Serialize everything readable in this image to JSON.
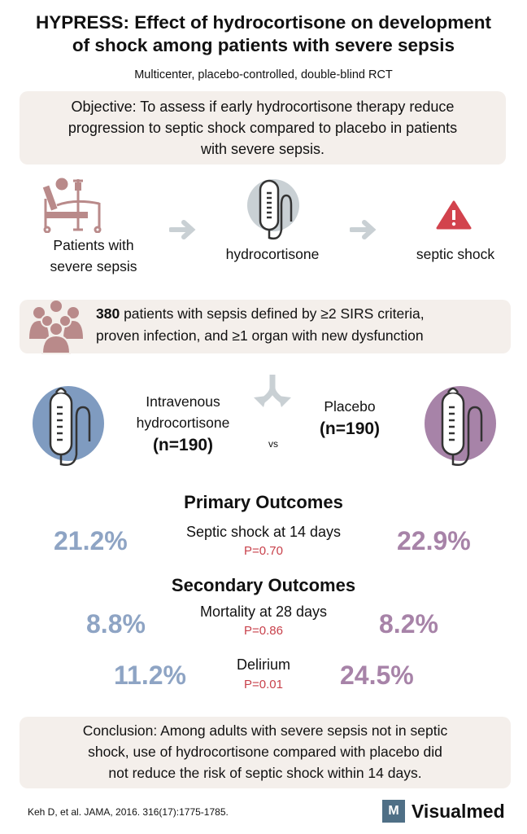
{
  "header": {
    "title_line1": "HYPRESS: Effect of hydrocortisone on development",
    "title_line2": "of shock among patients with severe sepsis",
    "subtitle": "Multicenter, placebo-controlled, double-blind RCT"
  },
  "objective": {
    "line1": "Objective: To assess if early hydrocortisone therapy reduce",
    "line2": "progression to septic shock compared to placebo in patients",
    "line3": "with severe sepsis."
  },
  "flow": {
    "step1_line1": "Patients with",
    "step1_line2": "severe sepsis",
    "step2": "hydrocortisone",
    "step3": "septic shock"
  },
  "population": {
    "count": "380",
    "line1_rest": " patients with sepsis defined by ≥2 SIRS criteria,",
    "line2": "proven infection, and ≥1 organ with new dysfunction"
  },
  "arms": {
    "left_line1": "Intravenous",
    "left_line2": "hydrocortisone",
    "left_n": "(n=190)",
    "vs": "vs",
    "right_line1": "Placebo",
    "right_n": "(n=190)"
  },
  "primary": {
    "heading": "Primary Outcomes",
    "label": "Septic shock at 14 days",
    "p": "P=0.70",
    "hydrocortisone": "21.2%",
    "placebo": "22.9%"
  },
  "secondary": {
    "heading": "Secondary Outcomes",
    "mortality": {
      "label": "Mortality at 28 days",
      "p": "P=0.86",
      "hydrocortisone": "8.8%",
      "placebo": "8.2%"
    },
    "delirium": {
      "label": "Delirium",
      "p": "P=0.01",
      "hydrocortisone": "11.2%",
      "placebo": "24.5%"
    }
  },
  "conclusion": {
    "line1": "Conclusion: Among adults with severe sepsis not in septic",
    "line2": "shock, use of hydrocortisone compared with placebo did",
    "line3": "not reduce the risk of septic shock within 14 days."
  },
  "footer": {
    "citation": "Keh D, et al. JAMA,  2016. 316(17):1775-1785.",
    "logo_letter": "M",
    "logo_text": "Visualmed"
  },
  "colors": {
    "hydrocortisone": "#8ea4c4",
    "placebo": "#a783a8",
    "p_value": "#c8414b",
    "box": "#f4efeb",
    "icon_rose": "#b98a8a",
    "arrow_gray": "#c9d0d4",
    "warning": "#d2434d"
  }
}
